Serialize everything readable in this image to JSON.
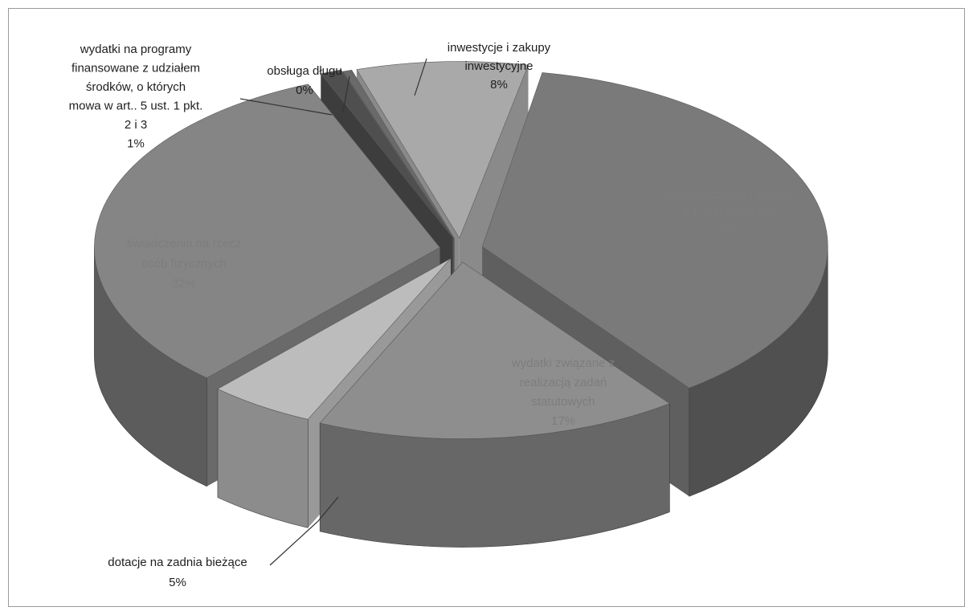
{
  "chart_data": {
    "type": "pie",
    "title": "",
    "slices": [
      {
        "label": "wynagrodzenia i składki od nich naliczane",
        "value": 37,
        "display": "37%",
        "top": "#7a7a7a",
        "side": "#505050",
        "side2": "#5f5f5f"
      },
      {
        "label": "wydatki związane z realizacją zadań statutowych",
        "value": 17,
        "display": "17%",
        "top": "#8e8e8e",
        "side": "#676767",
        "side2": "#747474"
      },
      {
        "label": "dotacje na zadnia bieżące",
        "value": 5,
        "display": "5%",
        "top": "#bcbcbc",
        "side": "#8c8c8c",
        "side2": "#999999"
      },
      {
        "label": "świadczenia na rzecz osób fizycznych",
        "value": 32,
        "display": "32%",
        "top": "#858585",
        "side": "#5c5c5c",
        "side2": "#6a6a6a"
      },
      {
        "label": "wydatki na programy finansowane z udziałem środków, o których mowa w art.. 5 ust. 1 pkt. 2 i 3",
        "value": 1,
        "display": "1%",
        "top": "#4f4f4f",
        "side": "#333333",
        "side2": "#3d3d3d"
      },
      {
        "label": "obsługa długu",
        "value": 0,
        "display": "0%",
        "top": "#6a6a6a",
        "side": "#4a4a4a",
        "side2": "#555555"
      },
      {
        "label": "inwestycje i zakupy inwestycyjne",
        "value": 8,
        "display": "8%",
        "top": "#a9a9a9",
        "side": "#7d7d7d",
        "side2": "#8a8a8a"
      }
    ],
    "labels": [
      {
        "id": "wynagrodzenia",
        "lines": [
          "wynagrodzenia i składki",
          "od nich naliczane",
          "37%"
        ],
        "style": "inside"
      },
      {
        "id": "wydatki-statutowe",
        "lines": [
          "wydatki związane z",
          "realizacją zadań",
          "statutowych",
          "17%"
        ],
        "style": "inside"
      },
      {
        "id": "dotacje",
        "lines": [
          "dotacje na zadnia bieżące",
          "5%"
        ],
        "style": "outside"
      },
      {
        "id": "swiadczenia",
        "lines": [
          "świadczenia na rzecz",
          "osób fizycznych",
          "32%"
        ],
        "style": "inside"
      },
      {
        "id": "programy",
        "lines": [
          "wydatki na programy",
          "finansowane z udziałem",
          "środków, o których",
          "mowa w art.. 5 ust. 1 pkt.",
          "2 i 3",
          "1%"
        ],
        "style": "outside"
      },
      {
        "id": "obsluga-dlugu",
        "lines": [
          "obsługa długu",
          "0%"
        ],
        "style": "outside"
      },
      {
        "id": "inwestycje",
        "lines": [
          "inwestycje i zakupy",
          "inwestycyjne",
          "8%"
        ],
        "style": "outside"
      }
    ],
    "legend": "none",
    "style": "3d-exploded-pie"
  }
}
